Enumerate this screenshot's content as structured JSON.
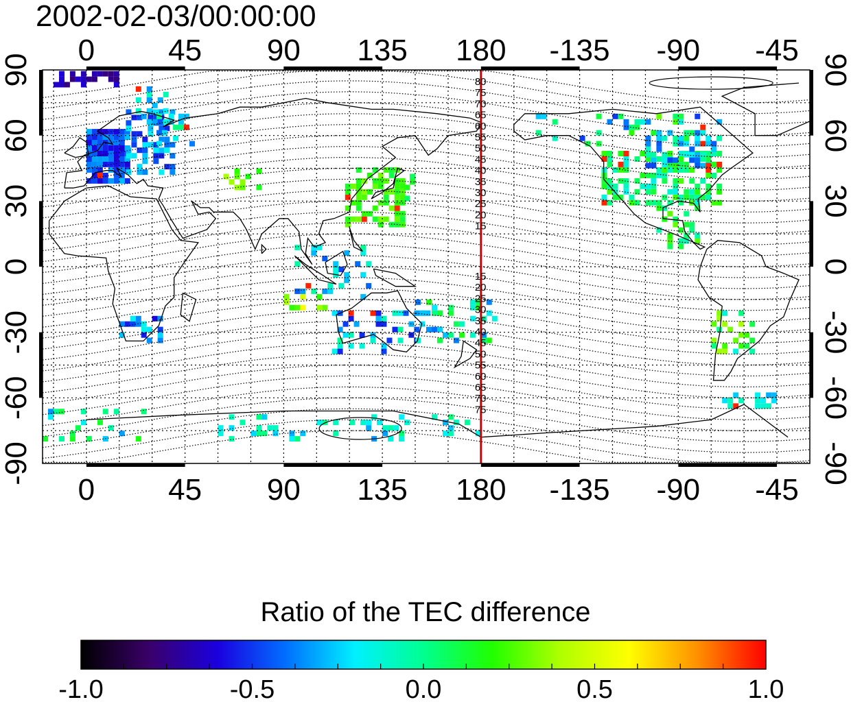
{
  "title": "2002-02-03/00:00:00",
  "map": {
    "lon_ticks": [
      "0",
      "45",
      "90",
      "135",
      "180",
      "-135",
      "-90",
      "-45"
    ],
    "lat_ticks": [
      "90",
      "60",
      "30",
      "0",
      "-30",
      "-60",
      "-90"
    ],
    "lon_range": [
      -20,
      330
    ],
    "lat_range": [
      -90,
      90
    ],
    "grid": true,
    "meridian_line": {
      "longitude": 180,
      "color": "#cc0000"
    },
    "contour_labels_north": [
      "80",
      "75",
      "70",
      "65",
      "60",
      "55",
      "50",
      "45",
      "40",
      "35",
      "30",
      "25",
      "20",
      "15"
    ],
    "contour_labels_south": [
      "15",
      "20",
      "25",
      "30",
      "35",
      "40",
      "45",
      "50",
      "55",
      "60",
      "65",
      "70",
      "75"
    ]
  },
  "colorbar": {
    "title": "Ratio of the TEC difference",
    "range": [
      -1.0,
      1.0
    ],
    "tick_labels": [
      "-1.0",
      "-0.5",
      "0.0",
      "0.5",
      "1.0"
    ],
    "colors": [
      "#000000",
      "#3a006a",
      "#1a00e0",
      "#0070ff",
      "#00f0ff",
      "#00ff90",
      "#20ff00",
      "#b0ff00",
      "#ffff00",
      "#ff9000",
      "#ff0000"
    ]
  }
}
